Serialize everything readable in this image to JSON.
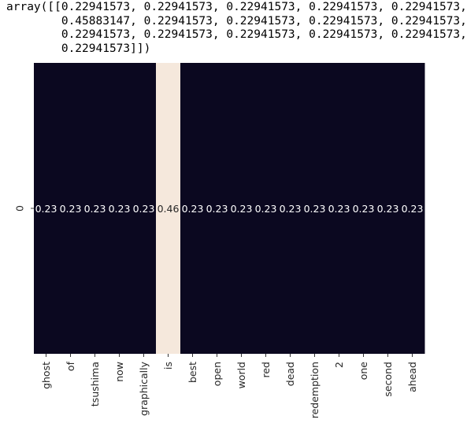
{
  "output_lines": [
    "array([[0.22941573, 0.22941573, 0.22941573, 0.22941573, 0.22941573,",
    "        0.45883147, 0.22941573, 0.22941573, 0.22941573, 0.22941573,",
    "        0.22941573, 0.22941573, 0.22941573, 0.22941573, 0.22941573,",
    "        0.22941573]])"
  ],
  "chart_data": {
    "type": "heatmap",
    "rows": [
      "0"
    ],
    "columns": [
      "ghost",
      "of",
      "tsushima",
      "now",
      "graphically",
      "is",
      "best",
      "open",
      "world",
      "red",
      "dead",
      "redemption",
      "2",
      "one",
      "second",
      "ahead"
    ],
    "values": [
      [
        0.23,
        0.23,
        0.23,
        0.23,
        0.23,
        0.46,
        0.23,
        0.23,
        0.23,
        0.23,
        0.23,
        0.23,
        0.23,
        0.23,
        0.23,
        0.23
      ]
    ],
    "annotations": [
      [
        "0.23",
        "0.23",
        "0.23",
        "0.23",
        "0.23",
        "0.46",
        "0.23",
        "0.23",
        "0.23",
        "0.23",
        "0.23",
        "0.23",
        "0.23",
        "0.23",
        "0.23",
        "0.23"
      ]
    ],
    "colormap": "rocket",
    "low_color": "#0b0820",
    "high_color": "#f5e8dc",
    "colorbar": false
  }
}
